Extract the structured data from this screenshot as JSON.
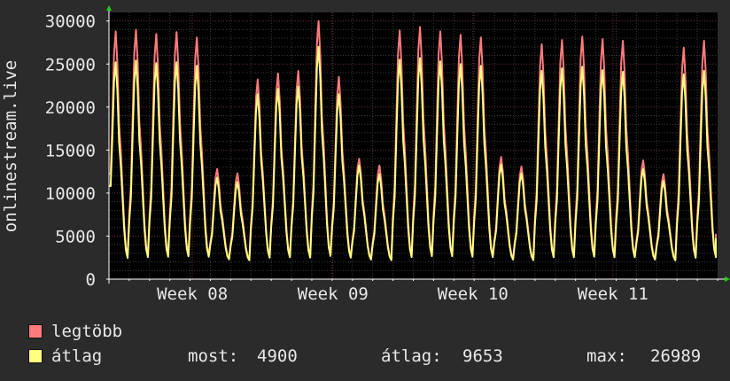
{
  "chart_data": {
    "type": "line",
    "ylabel": "onlinestream.live",
    "ylim": [
      0,
      31000
    ],
    "yticks": [
      0,
      5000,
      10000,
      15000,
      20000,
      25000,
      30000
    ],
    "x_ticks": [
      {
        "label": "Week 08",
        "pos": 0.137
      },
      {
        "label": "Week 09",
        "pos": 0.368
      },
      {
        "label": "Week 10",
        "pos": 0.598
      },
      {
        "label": "Week 11",
        "pos": 0.828
      }
    ],
    "grid": true,
    "days": 30,
    "series": [
      {
        "name": "legtöbb",
        "color": "#ff7b7b",
        "daily_peaks": [
          28800,
          29000,
          28500,
          28700,
          28100,
          12800,
          12300,
          23200,
          23900,
          24200,
          30000,
          23500,
          14000,
          13200,
          28900,
          29300,
          28800,
          28400,
          28100,
          14200,
          13100,
          27300,
          27800,
          28200,
          27900,
          27700,
          13800,
          12200,
          26900,
          27700
        ],
        "daily_lows": [
          2100,
          2200,
          2250,
          2300,
          2250,
          2200,
          2100,
          2200,
          2250,
          2200,
          2300,
          2200,
          2150,
          2100,
          2200,
          2300,
          2300,
          2250,
          2200,
          2150,
          2100,
          2200,
          2200,
          2250,
          2200,
          2200,
          2150,
          2100,
          2150,
          2200
        ]
      },
      {
        "name": "átlag",
        "color": "#ffff80",
        "daily_peaks": [
          25200,
          25400,
          25100,
          25200,
          24800,
          11800,
          11300,
          21500,
          22100,
          22400,
          27000,
          21500,
          13200,
          12200,
          25500,
          25700,
          25300,
          25000,
          24800,
          13300,
          12300,
          24200,
          24500,
          24700,
          24300,
          24100,
          12800,
          11400,
          23800,
          24200
        ],
        "daily_lows": [
          2000,
          2100,
          2150,
          2200,
          2150,
          2100,
          2000,
          2100,
          2150,
          2100,
          2200,
          2100,
          2050,
          2000,
          2100,
          2200,
          2200,
          2150,
          2100,
          2050,
          2000,
          2100,
          2100,
          2150,
          2100,
          2100,
          2050,
          2000,
          2050,
          2100
        ]
      }
    ],
    "stats": {
      "most_label": "most:",
      "most_value": "4900",
      "avg_label": "átlag:",
      "avg_value": "9653",
      "max_label": "max:",
      "max_value": "26989"
    }
  }
}
